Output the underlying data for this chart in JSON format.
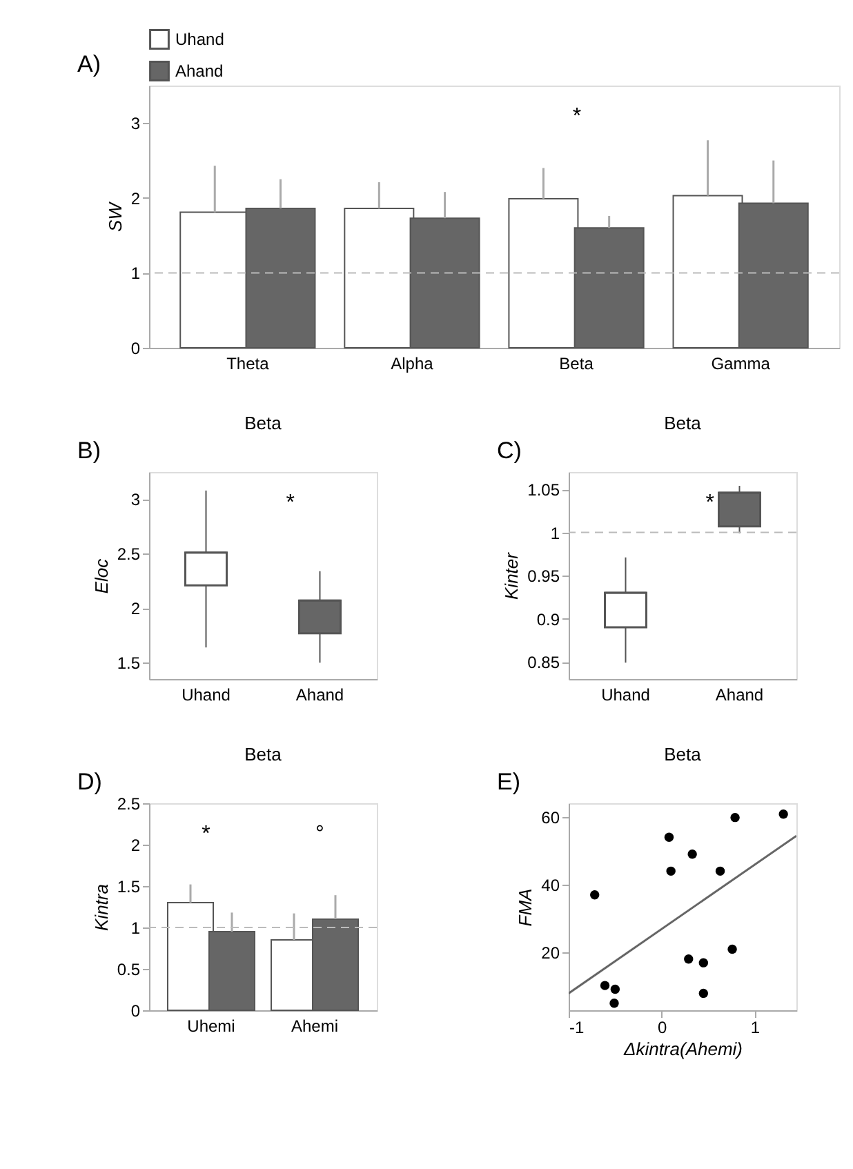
{
  "chart_data": [
    {
      "type": "bar",
      "ylabel": "SW",
      "categories": [
        "Theta",
        "Alpha",
        "Beta",
        "Gamma"
      ],
      "series": [
        {
          "name": "Uhand",
          "color": "#ffffff",
          "values": [
            1.81,
            1.86,
            1.99,
            2.03
          ],
          "errors": [
            [
              1.81,
              2.43
            ],
            [
              1.86,
              2.21
            ],
            [
              1.99,
              2.4
            ],
            [
              2.03,
              2.77
            ]
          ]
        },
        {
          "name": "Ahand",
          "color": "#666666",
          "values": [
            1.86,
            1.73,
            1.6,
            1.93
          ],
          "errors": [
            [
              1.86,
              2.25
            ],
            [
              1.73,
              2.08
            ],
            [
              1.6,
              1.76
            ],
            [
              1.93,
              2.5
            ]
          ]
        }
      ],
      "ylim": [
        0,
        3.5
      ],
      "yticks": [
        0,
        1,
        2,
        3
      ],
      "legend": "top",
      "grid": false,
      "ref_lines": [
        {
          "axis": "y",
          "value": 1,
          "color": "#bbbbbb",
          "line_style": "dashed"
        }
      ],
      "annotations": [
        "A)",
        "*"
      ]
    },
    {
      "type": "box",
      "title": "Beta",
      "ylabel": "Eloc",
      "categories": [
        "Uhand",
        "Ahand"
      ],
      "colors": [
        "#ffffff",
        "#666666"
      ],
      "boxes": [
        {
          "low": 1.64,
          "q1": 2.21,
          "median": 2.51,
          "q3": 2.51,
          "high": 3.08
        },
        {
          "low": 1.5,
          "q1": 1.77,
          "median": 2.07,
          "q3": 2.07,
          "high": 2.34
        }
      ],
      "ylim": [
        1.35,
        3.25
      ],
      "yticks": [
        1.5,
        2,
        2.5,
        3
      ],
      "grid": false,
      "annotations": [
        "B)",
        "*"
      ]
    },
    {
      "type": "box",
      "title": "Beta",
      "ylabel": "Kinter",
      "categories": [
        "Uhand",
        "Ahand"
      ],
      "colors": [
        "#ffffff",
        "#666666"
      ],
      "boxes": [
        {
          "low": 0.849,
          "q1": 0.89,
          "median": 0.93,
          "q3": 0.93,
          "high": 0.971
        },
        {
          "low": 0.999,
          "q1": 1.007,
          "median": 1.046,
          "q3": 1.046,
          "high": 1.054
        }
      ],
      "ylim": [
        0.83,
        1.07
      ],
      "yticks": [
        0.85,
        0.9,
        0.95,
        1,
        1.05
      ],
      "grid": false,
      "ref_lines": [
        {
          "axis": "y",
          "value": 1,
          "color": "#bbbbbb",
          "line_style": "dashed"
        }
      ],
      "annotations": [
        "C)",
        "*"
      ]
    },
    {
      "type": "bar",
      "title": "Beta",
      "ylabel": "Kintra",
      "categories": [
        "Uhemi",
        "Ahemi"
      ],
      "series": [
        {
          "color": "#ffffff",
          "values": [
            1.3,
            0.85
          ],
          "errors": [
            [
              1.3,
              1.52
            ],
            [
              0.85,
              1.17
            ]
          ]
        },
        {
          "color": "#666666",
          "values": [
            0.95,
            1.1
          ],
          "errors": [
            [
              0.95,
              1.18
            ],
            [
              1.1,
              1.39
            ]
          ]
        }
      ],
      "ylim": [
        0,
        2.5
      ],
      "yticks": [
        0,
        0.5,
        1,
        1.5,
        2,
        2.5
      ],
      "grid": false,
      "ref_lines": [
        {
          "axis": "y",
          "value": 1,
          "color": "#bbbbbb",
          "line_style": "dashed"
        }
      ],
      "annotations": [
        "D)",
        "*",
        "°"
      ]
    },
    {
      "type": "scatter",
      "title": "Beta",
      "xlabel": "Δkintra(Ahemi)",
      "ylabel": "FMA",
      "series": [
        {
          "type": "scatter",
          "color": "#000000",
          "marker": "circle",
          "x": [
            -0.72,
            -0.61,
            -0.5,
            -0.51,
            0.08,
            0.1,
            0.33,
            0.63,
            0.29,
            0.45,
            0.45,
            0.76,
            0.79,
            1.31
          ],
          "values": [
            37.0,
            10.3,
            9.2,
            5.1,
            54.0,
            44.0,
            49.0,
            44.0,
            18.1,
            17.0,
            8.0,
            21.0,
            59.8,
            60.8
          ]
        },
        {
          "type": "line",
          "color": "#666666",
          "marker": "none",
          "x": [
            -1,
            1.45
          ],
          "values": [
            8.0,
            54.4
          ]
        }
      ],
      "xlim": [
        -1,
        1.45
      ],
      "xticks": [
        -1,
        0,
        1
      ],
      "ylim": [
        3,
        64
      ],
      "yticks": [
        20,
        40,
        60
      ],
      "grid": false,
      "annotations": [
        "E)"
      ]
    }
  ]
}
